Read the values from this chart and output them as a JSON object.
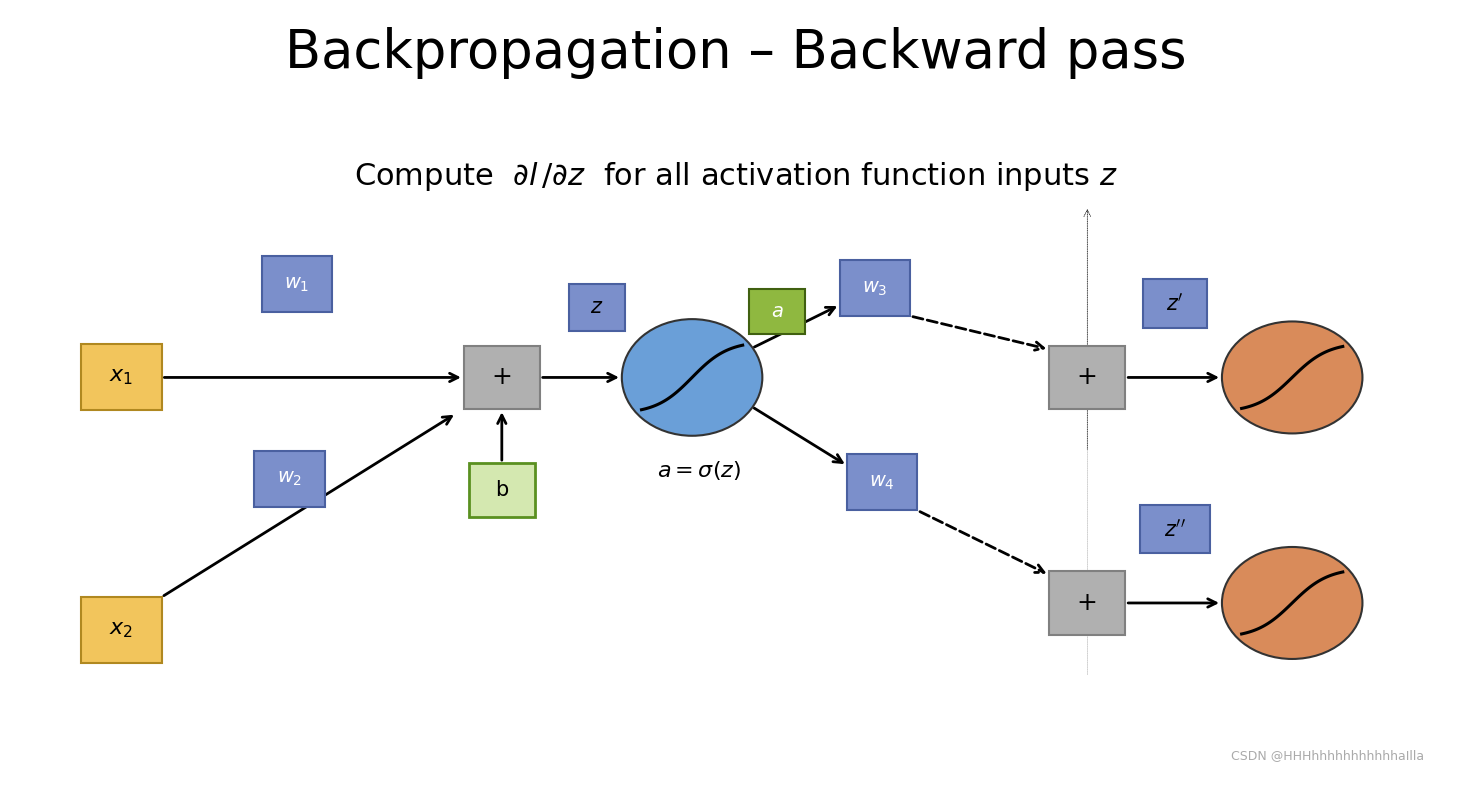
{
  "title": "Backpropagation – Backward pass",
  "background_color": "#ffffff",
  "title_fontsize": 38,
  "subtitle_fontsize": 22,
  "figsize": [
    14.72,
    7.86
  ],
  "colors": {
    "yellow_box": "#f2c55c",
    "blue_box": "#7b8fcb",
    "gray_box": "#b0b0b0",
    "green_box_fill": "#d4e8b0",
    "green_box_edge": "#5a9020",
    "green_label_fill": "#8fb840",
    "blue_circle": "#6a9fd8",
    "orange_circle": "#d98b5a",
    "z_label_fill": "#7b8fcb",
    "z_label_edge": "#4a60a0"
  },
  "watermark": "CSDN @HHHhhhhhhhhhhhaIlla"
}
